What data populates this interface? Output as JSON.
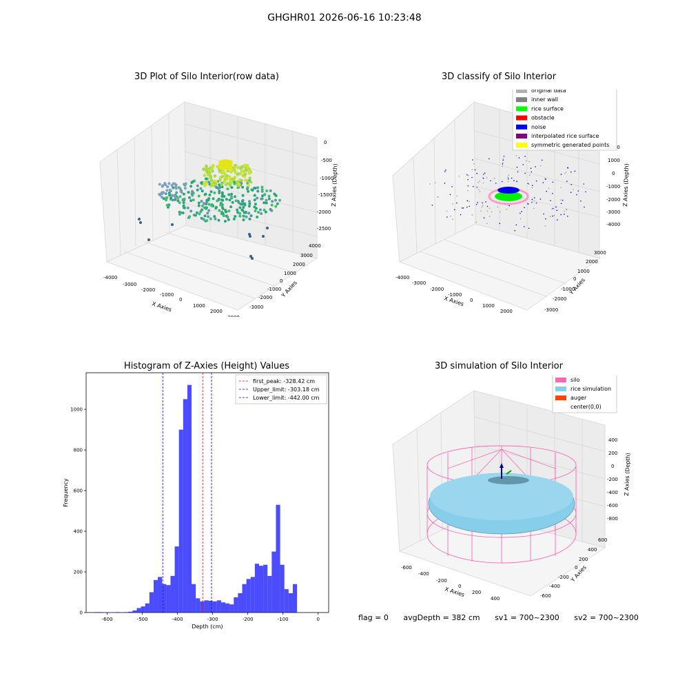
{
  "sup_title": "GHGHR01 2026-06-16 10:23:48",
  "panels": {
    "raw": {
      "title": "3D Plot of Silo Interior(row data)",
      "xlabel": "X Axies",
      "ylabel": "Y Axies",
      "zlabel": "Z Axies (Depth)",
      "xticks": [
        "-4000",
        "-3000",
        "-2000",
        "-1000",
        "0",
        "1000",
        "2000",
        "3000"
      ],
      "yticks": [
        "4000",
        "3000",
        "2000",
        "1000",
        "0",
        "-1000",
        "-2000",
        "-3000"
      ],
      "zticks": [
        "0",
        "-500",
        "-1000",
        "-1500",
        "-2000",
        "-2500"
      ]
    },
    "classify": {
      "title": "3D classify of Silo Interior",
      "xlabel": "X Axies",
      "ylabel": "Y Axies",
      "zlabel": "Z Axies (Depth)",
      "xticks": [
        "-4000",
        "-3000",
        "-2000",
        "-1000",
        "0",
        "1000",
        "2000"
      ],
      "yticks": [
        "3000",
        "2000",
        "1000",
        "0",
        "-1000",
        "-2000",
        "-3000"
      ],
      "zticks": [
        "2000",
        "1000",
        "0",
        "-1000",
        "-2000",
        "-3000",
        "-4000"
      ],
      "legend": [
        {
          "label": "original data",
          "color": "#b0b0b0"
        },
        {
          "label": "inner wall",
          "color": "#808080"
        },
        {
          "label": "rice surface",
          "color": "#00ff00"
        },
        {
          "label": "obstacle",
          "color": "#ff0000"
        },
        {
          "label": "noise",
          "color": "#0000ff"
        },
        {
          "label": "interpolated rice surface",
          "color": "#800080"
        },
        {
          "label": "symmetric generated points",
          "color": "#ffff00"
        }
      ]
    },
    "simulation": {
      "title": "3D simulation of Silo Interior",
      "xlabel": "X Axies",
      "ylabel": "Y Axies",
      "zlabel": "Z Axies (Depth)",
      "xticks": [
        "-600",
        "-400",
        "-200",
        "0",
        "200",
        "400",
        "600"
      ],
      "yticks": [
        "600",
        "400",
        "200",
        "0",
        "-200",
        "-400",
        "-600"
      ],
      "zticks": [
        "400",
        "200",
        "0",
        "-200",
        "-400",
        "-600",
        "-800"
      ],
      "legend": [
        {
          "label": "silo",
          "color": "#ff69b4"
        },
        {
          "label": "rice simulation",
          "color": "#87ceeb"
        },
        {
          "label": "auger",
          "color": "#ff4500"
        },
        {
          "label": "center(0,0)",
          "color": ""
        }
      ]
    }
  },
  "status": {
    "flag": "flag = 0",
    "avg_depth": "avgDepth = 382 cm",
    "sv1": "sv1 = 700~2300",
    "sv2": "sv2 = 700~2300"
  },
  "chart_data": [
    {
      "type": "bar",
      "title": "Histogram of Z-Axies (Height) Values",
      "xlabel": "Depth (cm)",
      "ylabel": "Frequency",
      "xlim": [
        -660,
        30
      ],
      "ylim": [
        0,
        1180
      ],
      "xticks": [
        -600,
        -500,
        -400,
        -300,
        -200,
        -100,
        0
      ],
      "yticks": [
        0,
        200,
        400,
        600,
        800,
        1000
      ],
      "bar_color": "#0000ff",
      "bin_edges_start": -660,
      "bin_width": 12,
      "values": [
        0,
        0,
        2,
        2,
        1,
        0,
        0,
        2,
        0,
        2,
        4,
        10,
        22,
        30,
        45,
        100,
        160,
        175,
        140,
        135,
        180,
        325,
        900,
        1050,
        1120,
        140,
        70,
        55,
        60,
        58,
        55,
        60,
        50,
        45,
        40,
        75,
        95,
        140,
        165,
        175,
        240,
        230,
        235,
        180,
        300,
        530,
        235,
        115,
        95,
        140
      ],
      "lines": [
        {
          "label": "first_peak: -328.42 cm",
          "x": -328.42,
          "color": "#ff0000"
        },
        {
          "label": "Upper_limit: -303.18 cm",
          "x": -303.18,
          "color": "#0000ff"
        },
        {
          "label": "Lower_limit: -442.00 cm",
          "x": -442.0,
          "color": "#0000ff"
        }
      ],
      "legend_position": "upper-right"
    }
  ]
}
